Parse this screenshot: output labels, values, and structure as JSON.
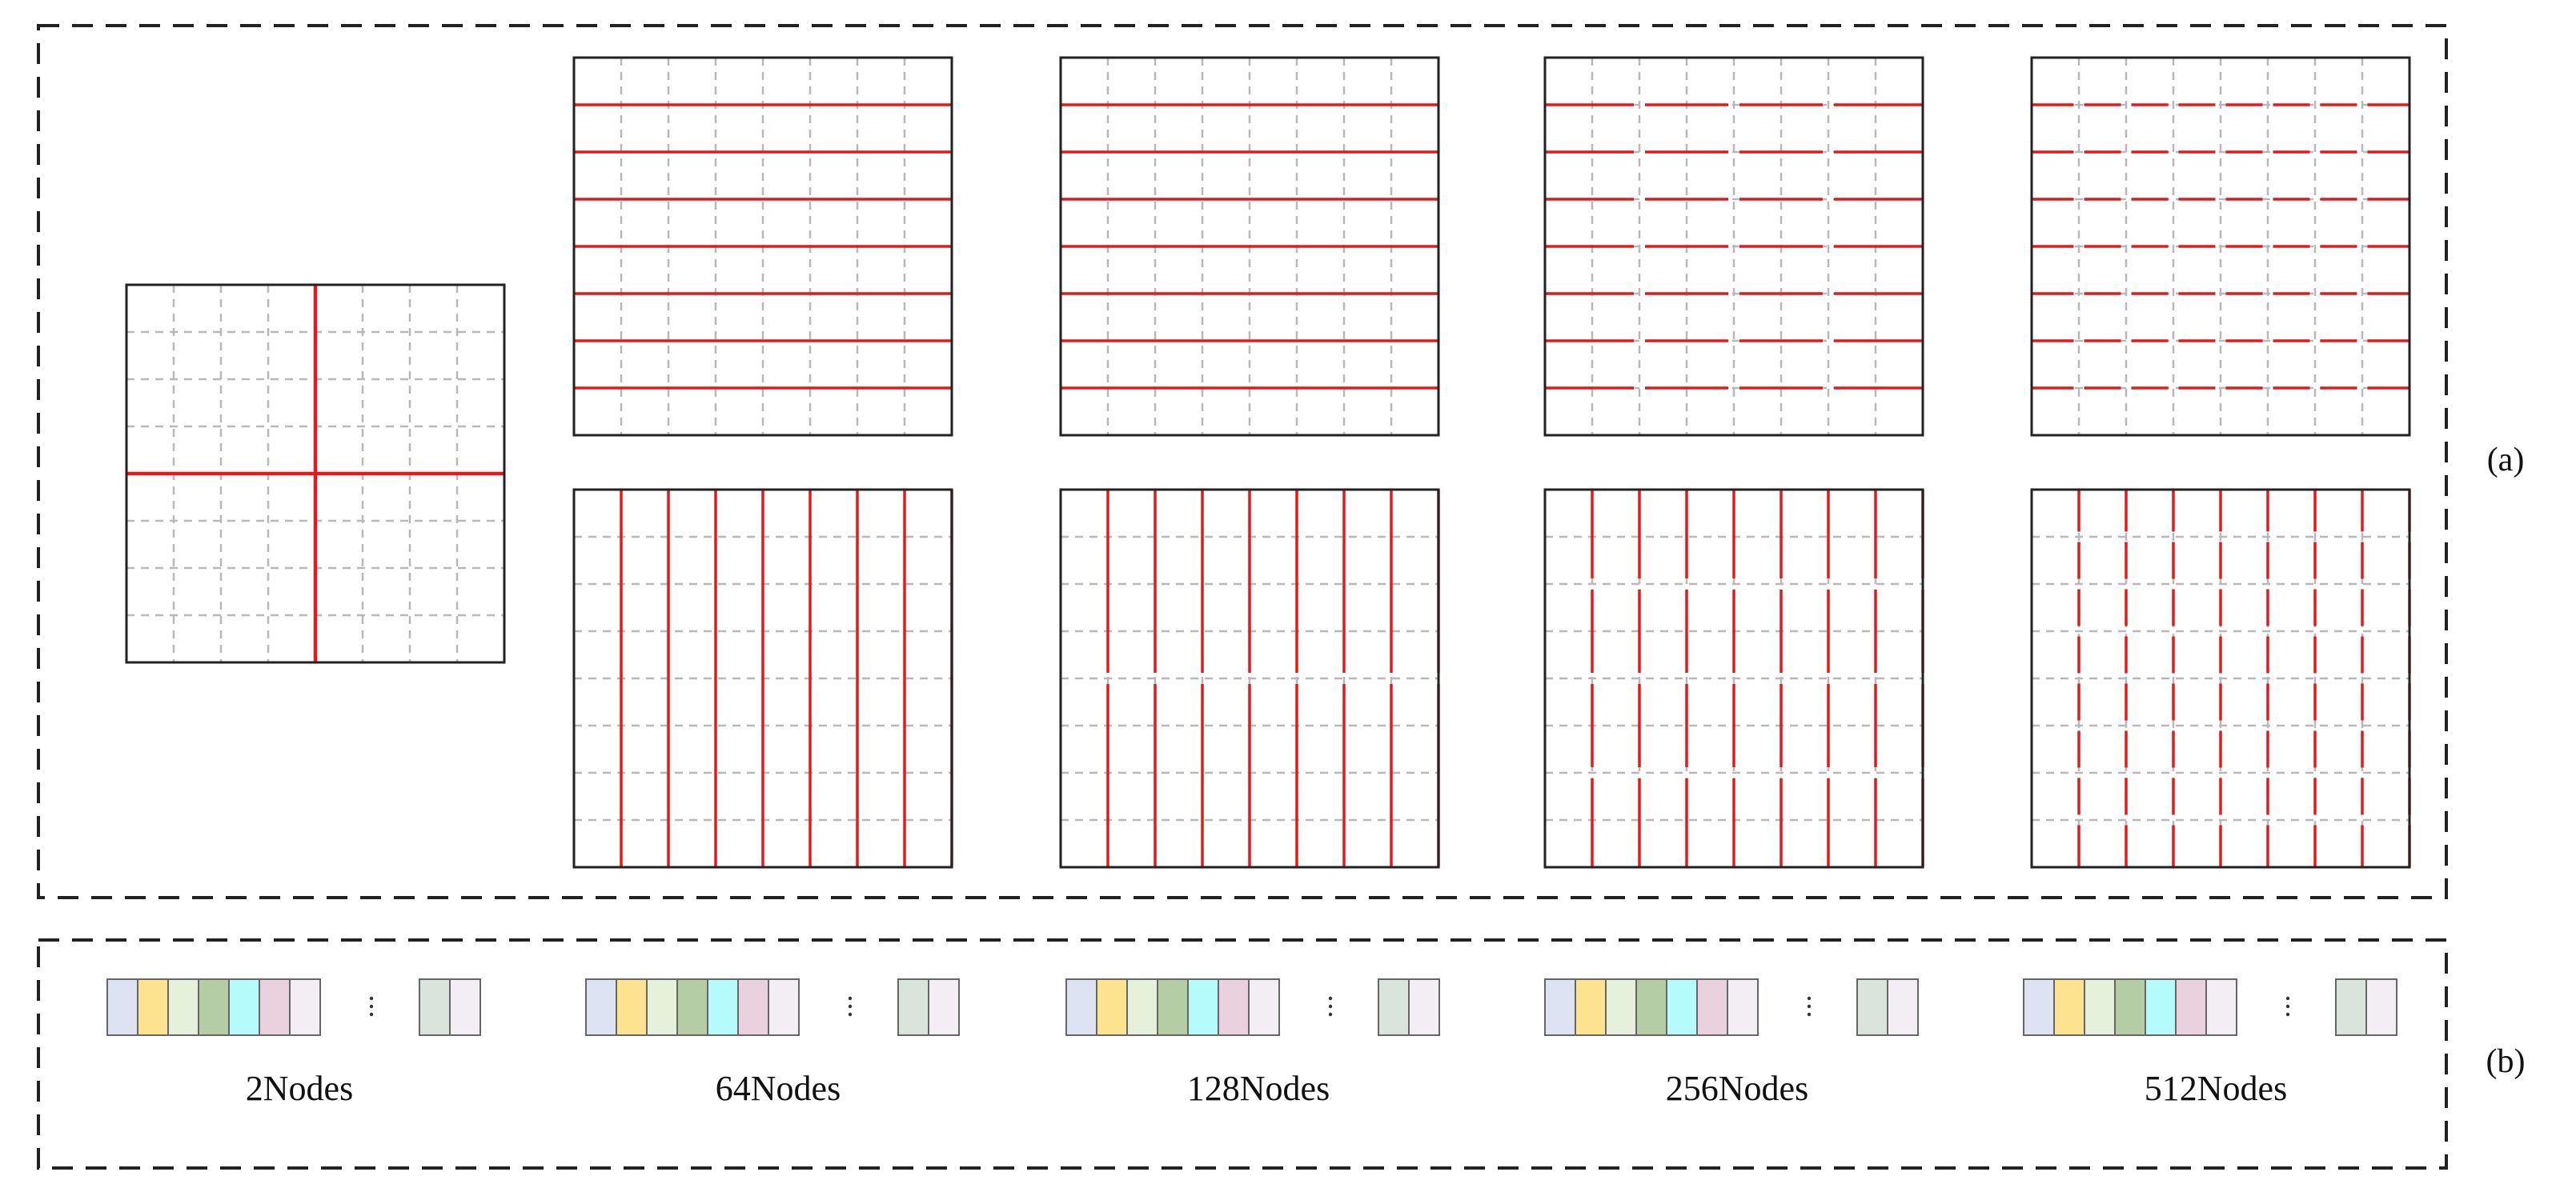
{
  "panel_a_label": "(a)",
  "panel_b_label": "(b)",
  "colors": {
    "border": "#222222",
    "grid_dash": "#b8b8b8",
    "partition": "#e31a1c",
    "node_cells": [
      "#dde3f3",
      "#fde28f",
      "#e6f1dc",
      "#b5cda4",
      "#b6fbfb",
      "#e9d1dd",
      "#f3eef3"
    ],
    "node_tail": [
      "#d9e4dc",
      "#f3eef3"
    ]
  },
  "grid": {
    "rows": 8,
    "cols": 8
  },
  "panel_a": {
    "single": {
      "name": "2-node-cross",
      "mode": "cross",
      "count": 1
    },
    "top_row": [
      {
        "name": "64-node-horizontal",
        "mode": "h",
        "count": 7,
        "segments": 1
      },
      {
        "name": "128-node-horizontal",
        "mode": "h",
        "count": 7,
        "segments": 1
      },
      {
        "name": "256-node-horizontal",
        "mode": "h",
        "count": 7,
        "segments": 4
      },
      {
        "name": "512-node-horizontal",
        "mode": "h",
        "count": 7,
        "segments": 8
      }
    ],
    "bottom_row": [
      {
        "name": "64-node-vertical",
        "mode": "v",
        "count": 8,
        "segments": 1
      },
      {
        "name": "128-node-vertical",
        "mode": "v",
        "count": 8,
        "segments": 2
      },
      {
        "name": "256-node-vertical",
        "mode": "v",
        "count": 8,
        "segments": 4
      },
      {
        "name": "512-node-vertical",
        "mode": "v",
        "count": 8,
        "segments": 8
      }
    ]
  },
  "panel_b": {
    "groups": [
      {
        "label": "2Nodes"
      },
      {
        "label": "64Nodes"
      },
      {
        "label": "128Nodes"
      },
      {
        "label": "256Nodes"
      },
      {
        "label": "512Nodes"
      }
    ]
  }
}
